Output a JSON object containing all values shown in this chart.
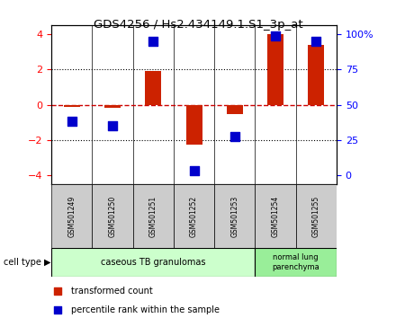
{
  "title": "GDS4256 / Hs2.434149.1.S1_3p_at",
  "samples": [
    "GSM501249",
    "GSM501250",
    "GSM501251",
    "GSM501252",
    "GSM501253",
    "GSM501254",
    "GSM501255"
  ],
  "transformed_count": [
    -0.1,
    -0.15,
    1.9,
    -2.25,
    -0.5,
    4.0,
    3.4
  ],
  "percentile_rank_scaled": [
    -0.9,
    -1.2,
    3.6,
    -3.7,
    -1.8,
    3.9,
    3.6
  ],
  "red_color": "#cc2200",
  "blue_color": "#0000cc",
  "zero_line_color": "#cc0000",
  "dotted_line_color": "#000000",
  "group1_label": "caseous TB granulomas",
  "group2_label": "normal lung\nparenchyma",
  "group1_count": 5,
  "group2_count": 2,
  "group1_bg": "#ccffcc",
  "group2_bg": "#99ee99",
  "sample_bg": "#cccccc",
  "cell_type_label": "cell type",
  "legend1": "transformed count",
  "legend2": "percentile rank within the sample",
  "ylim": [
    -4.5,
    4.5
  ],
  "yticks_left": [
    -4,
    -2,
    0,
    2,
    4
  ],
  "yticks_right": [
    0,
    25,
    50,
    75,
    100
  ],
  "yticks_right_scaled": [
    -4.0,
    -2.0,
    0.0,
    2.0,
    4.0
  ],
  "bar_width": 0.4,
  "marker_size": 55
}
